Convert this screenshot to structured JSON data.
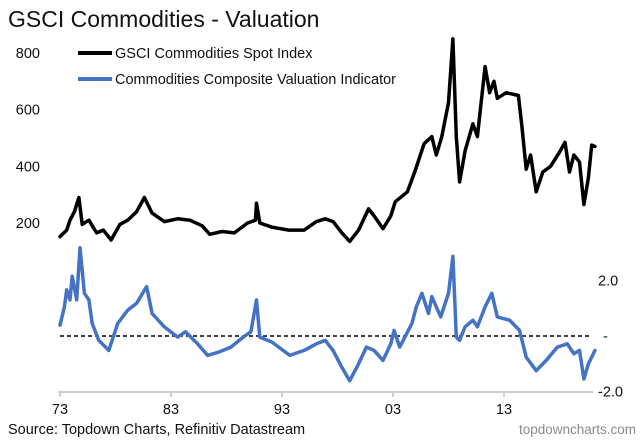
{
  "chart_data": {
    "title": "GSCI Commodities - Valuation",
    "type": "line",
    "x_ticks": [
      "73",
      "83",
      "93",
      "03",
      "13"
    ],
    "x_tick_years": [
      1973,
      1983,
      1993,
      2003,
      2013
    ],
    "left_axis": {
      "ticks": [
        "800",
        "600",
        "400",
        "200"
      ],
      "tick_values": [
        800,
        600,
        400,
        200
      ]
    },
    "right_axis": {
      "ticks": [
        "2.0",
        "-",
        "-2.0"
      ],
      "tick_values": [
        2,
        0,
        -2
      ]
    },
    "reference_line": {
      "value": 0,
      "style": "dashed",
      "color": "#000000"
    },
    "legend_placement": "top-left",
    "grid": false,
    "series": [
      {
        "name": "GSCI Commodities Spot Index",
        "color": "#000000",
        "axis": "left",
        "x": [
          1973.0,
          1973.6,
          1973.9,
          1974.3,
          1974.7,
          1975.0,
          1975.6,
          1976.3,
          1976.9,
          1977.6,
          1978.4,
          1979.1,
          1979.9,
          1980.6,
          1981.3,
          1982.4,
          1983.6,
          1984.7,
          1985.8,
          1986.5,
          1987.6,
          1988.7,
          1989.9,
          1990.6,
          1990.7,
          1991.0,
          1992.1,
          1993.6,
          1995.0,
          1996.1,
          1996.9,
          1997.6,
          1998.4,
          1999.1,
          1999.9,
          2000.8,
          2001.3,
          2002.1,
          2002.8,
          2003.2,
          2004.3,
          2005.0,
          2005.8,
          2006.5,
          2006.9,
          2007.4,
          2008.0,
          2008.4,
          2008.7,
          2009.0,
          2009.5,
          2010.2,
          2010.6,
          2011.3,
          2011.7,
          2012.1,
          2012.4,
          2013.2,
          2014.3,
          2014.6,
          2015.0,
          2015.4,
          2015.9,
          2016.5,
          2017.2,
          2018.0,
          2018.5,
          2018.9,
          2019.3,
          2019.8,
          2020.2,
          2020.6,
          2020.9,
          2021.2
        ],
        "y": [
          152,
          175,
          210,
          240,
          290,
          195,
          210,
          165,
          175,
          140,
          195,
          210,
          240,
          290,
          235,
          205,
          215,
          210,
          190,
          160,
          170,
          165,
          200,
          210,
          270,
          200,
          185,
          175,
          175,
          205,
          215,
          205,
          165,
          135,
          175,
          250,
          225,
          180,
          225,
          275,
          310,
          385,
          480,
          505,
          440,
          505,
          625,
          850,
          505,
          345,
          455,
          550,
          505,
          752,
          660,
          700,
          640,
          660,
          650,
          545,
          390,
          440,
          310,
          380,
          400,
          450,
          485,
          380,
          440,
          415,
          265,
          360,
          475,
          470
        ]
      },
      {
        "name": "Commodities Composite Valuation Indicator",
        "color": "#4472C4",
        "axis": "right",
        "x": [
          1973.0,
          1973.4,
          1973.6,
          1973.9,
          1974.1,
          1974.5,
          1974.8,
          1975.2,
          1975.6,
          1975.9,
          1976.5,
          1977.4,
          1978.2,
          1979.1,
          1979.9,
          1980.8,
          1981.3,
          1982.4,
          1983.6,
          1984.3,
          1985.4,
          1986.3,
          1987.3,
          1988.4,
          1989.5,
          1990.2,
          1990.7,
          1991.0,
          1992.1,
          1993.7,
          1995.0,
          1996.1,
          1996.9,
          1997.6,
          1998.4,
          1999.1,
          1999.9,
          2000.6,
          2001.3,
          2002.1,
          2002.8,
          2003.1,
          2003.6,
          2004.7,
          2005.1,
          2005.6,
          2006.2,
          2006.5,
          2007.3,
          2008.0,
          2008.4,
          2008.7,
          2009.0,
          2009.5,
          2010.2,
          2010.6,
          2011.3,
          2011.9,
          2012.4,
          2013.5,
          2014.4,
          2015.0,
          2015.9,
          2016.8,
          2017.8,
          2018.7,
          2019.3,
          2019.8,
          2020.2,
          2020.6,
          2021.2
        ],
        "y": [
          0.39,
          1.05,
          1.66,
          1.3,
          2.15,
          1.3,
          3.18,
          1.54,
          1.3,
          0.45,
          -0.16,
          -0.52,
          0.45,
          0.93,
          1.18,
          1.78,
          0.81,
          0.33,
          -0.04,
          0.15,
          -0.28,
          -0.7,
          -0.58,
          -0.4,
          -0.04,
          0.15,
          1.3,
          -0.04,
          -0.22,
          -0.7,
          -0.52,
          -0.28,
          -0.16,
          -0.52,
          -1.13,
          -1.61,
          -1.0,
          -0.4,
          -0.52,
          -0.88,
          -0.28,
          0.2,
          -0.4,
          0.45,
          1.05,
          1.54,
          0.81,
          1.42,
          0.69,
          1.54,
          2.87,
          -0.04,
          -0.16,
          0.33,
          0.57,
          0.33,
          1.05,
          1.54,
          0.69,
          0.57,
          0.2,
          -0.76,
          -1.25,
          -0.88,
          -0.4,
          -0.28,
          -0.64,
          -0.52,
          -1.55,
          -1.0,
          -0.52
        ]
      }
    ]
  },
  "footer": {
    "source": "Source: Topdown Charts, Refinitiv Datastream",
    "watermark": "topdowncharts.com"
  }
}
